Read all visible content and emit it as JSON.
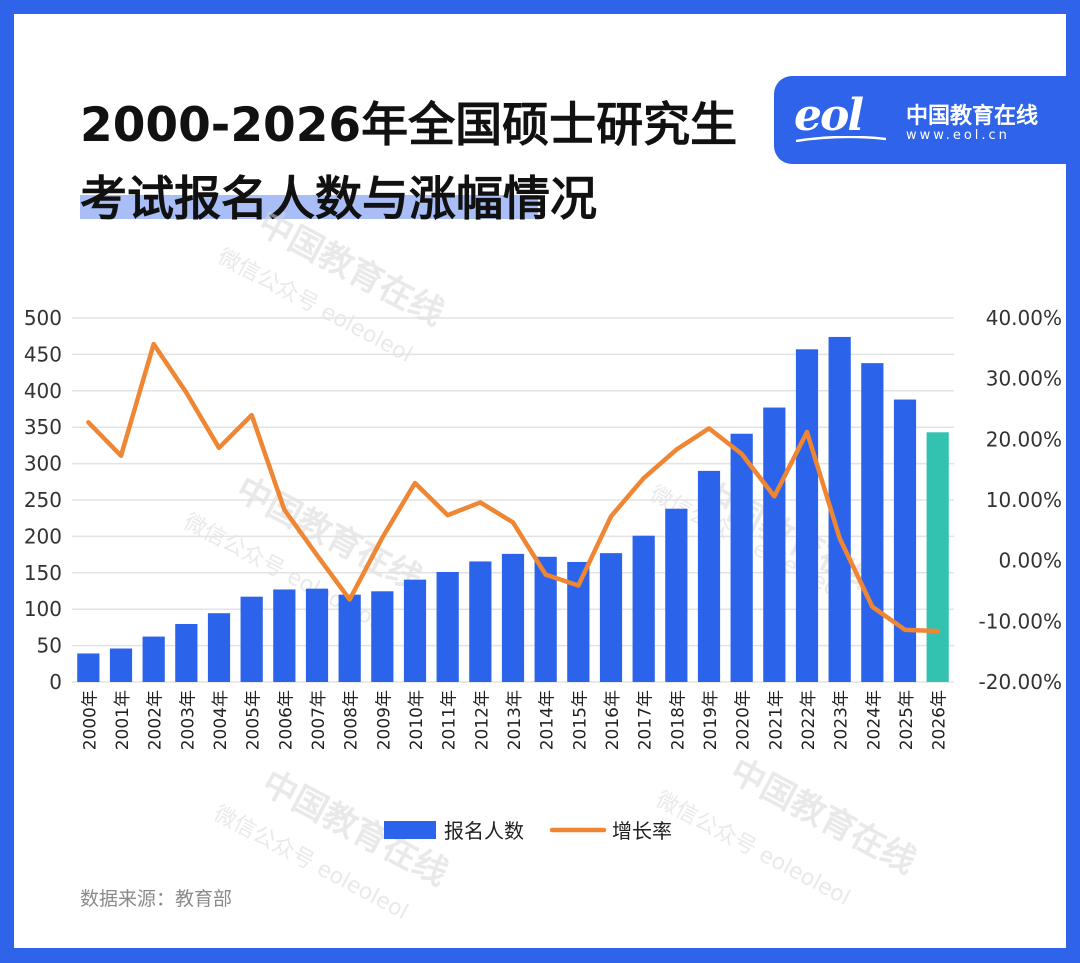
{
  "title_line1": "2000-2026年全国硕士研究生",
  "title_line2": "考试报名人数与涨幅情况",
  "logo": {
    "name": "中国教育在线",
    "url": "www.eol.cn",
    "mark": "eol"
  },
  "source": "数据来源：教育部",
  "watermarks": [
    "中国教育在线",
    "微信公众号 eoleoleol"
  ],
  "colors": {
    "bar": "#2b63ea",
    "bar_highlight": "#33c2b0",
    "line": "#ef8634",
    "frame": "#2f63ea"
  },
  "chart_data": {
    "type": "bar",
    "categories": [
      "2000年",
      "2001年",
      "2002年",
      "2003年",
      "2004年",
      "2005年",
      "2006年",
      "2007年",
      "2008年",
      "2009年",
      "2010年",
      "2011年",
      "2012年",
      "2013年",
      "2014年",
      "2015年",
      "2016年",
      "2017年",
      "2018年",
      "2019年",
      "2020年",
      "2021年",
      "2022年",
      "2023年",
      "2024年",
      "2025年",
      "2026年"
    ],
    "series": [
      {
        "name": "报名人数",
        "type": "bar",
        "axis": "left",
        "values": [
          39.2,
          46,
          62.4,
          79.7,
          94.5,
          117.2,
          127.1,
          128.2,
          120,
          124.6,
          140.6,
          151.1,
          165.6,
          176,
          172,
          164.9,
          177,
          201,
          238,
          290,
          341,
          377,
          457,
          474,
          438,
          388,
          343
        ]
      },
      {
        "name": "增长率",
        "type": "line",
        "axis": "right",
        "values": [
          22.8,
          17.3,
          35.7,
          27.7,
          18.6,
          24.0,
          8.4,
          0.9,
          -6.4,
          3.8,
          12.8,
          7.5,
          9.6,
          6.3,
          -2.3,
          -4.1,
          7.3,
          13.6,
          18.3,
          21.8,
          17.6,
          10.6,
          21.2,
          3.7,
          -7.6,
          -11.4,
          -11.6
        ]
      }
    ],
    "y_left": {
      "min": 0,
      "max": 500,
      "ticks": [
        "0",
        "50",
        "100",
        "150",
        "200",
        "250",
        "300",
        "350",
        "400",
        "450",
        "500"
      ]
    },
    "y_right": {
      "min": -20,
      "max": 40,
      "ticks": [
        "-20.00%",
        "-10.00%",
        "0.00%",
        "10.00%",
        "20.00%",
        "30.00%",
        "40.00%"
      ]
    },
    "highlight_category": "2026年",
    "grid": true,
    "legend_position": "bottom"
  }
}
